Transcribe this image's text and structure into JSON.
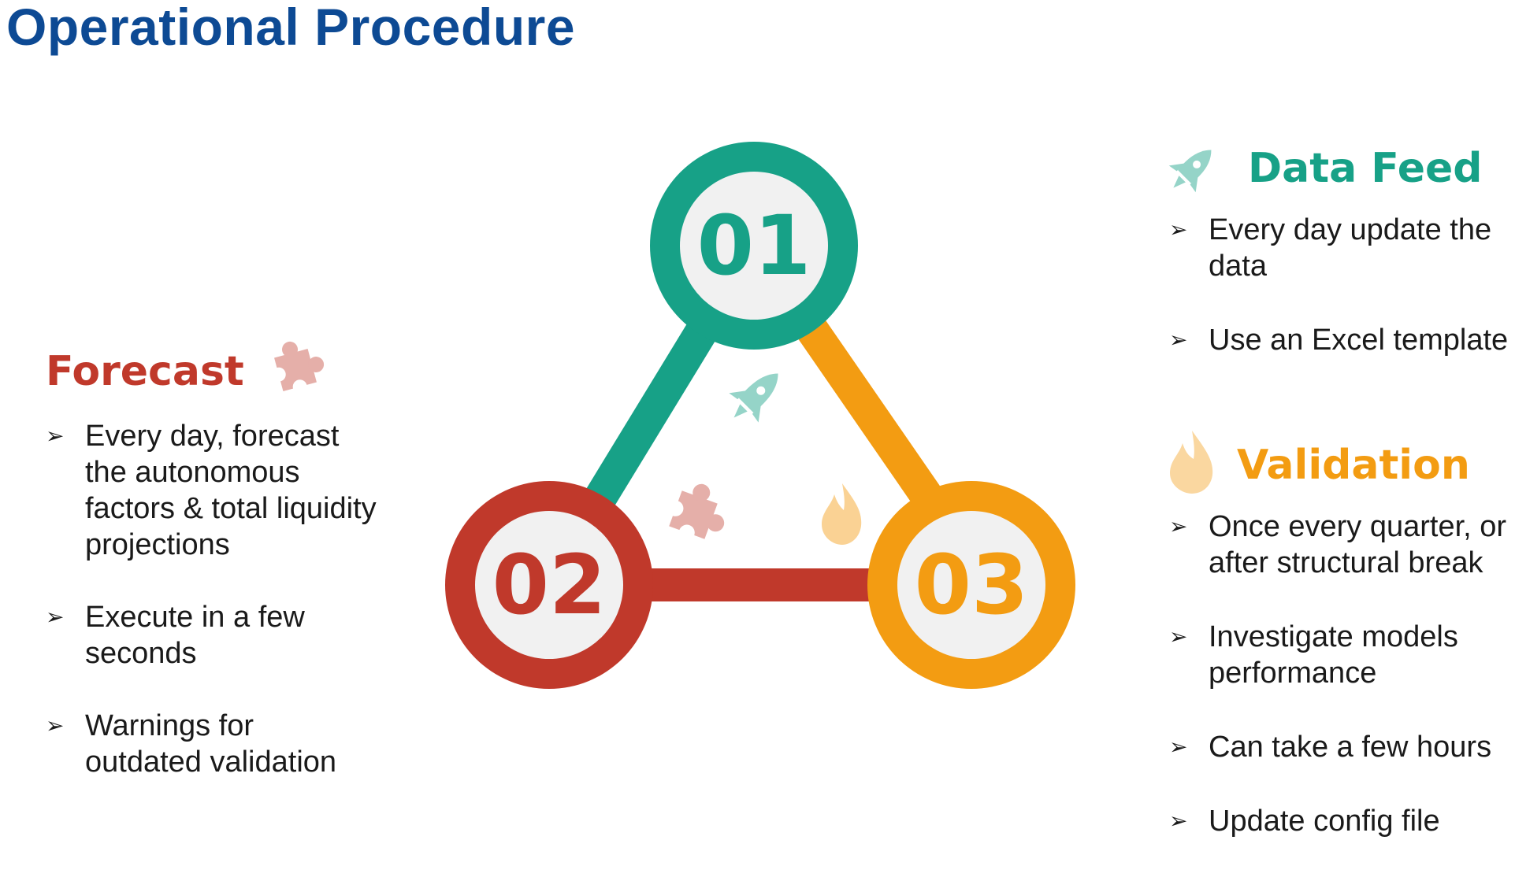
{
  "title": "Operational Procedure",
  "colors": {
    "title": "#0d4a94",
    "step1": "#17a187",
    "step2": "#c0392b",
    "step3": "#f39c12",
    "circle_fill": "#f1f1f1"
  },
  "steps": [
    {
      "number": "01",
      "color": "#17a187"
    },
    {
      "number": "02",
      "color": "#c0392b"
    },
    {
      "number": "03",
      "color": "#f39c12"
    }
  ],
  "forecast": {
    "title": "Forecast",
    "icon": "puzzle-icon",
    "bullets": [
      "Every day, forecast the autonomous factors & total liquidity projections",
      "Execute in a few seconds",
      "Warnings for outdated validation"
    ]
  },
  "data_feed": {
    "title": "Data Feed",
    "icon": "rocket-icon",
    "bullets": [
      "Every day update the data",
      "Use an Excel template"
    ]
  },
  "validation": {
    "title": "Validation",
    "icon": "flame-icon",
    "bullets": [
      "Once every quarter, or after structural break",
      "Investigate models performance",
      "Can take a few hours",
      "Update config file"
    ]
  },
  "bullet_glyph": "➢"
}
